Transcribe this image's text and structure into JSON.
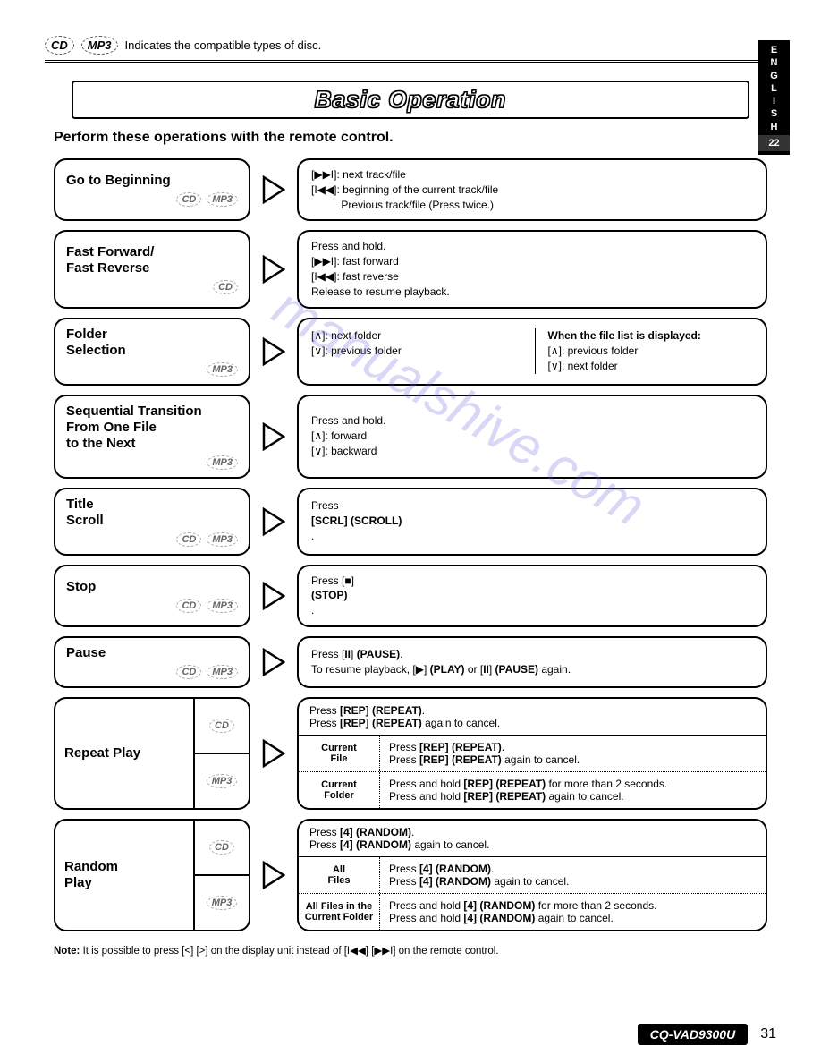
{
  "header": {
    "icons": [
      "CD",
      "MP3"
    ],
    "text": "Indicates the compatible types of disc."
  },
  "lang_tab": {
    "letters": [
      "E",
      "N",
      "G",
      "L",
      "I",
      "S",
      "H"
    ],
    "num": "22"
  },
  "title": "Basic Operation",
  "subtitle": "Perform these operations with the remote control.",
  "rows": [
    {
      "title": "Go to Beginning",
      "badges": [
        "CD",
        "MP3"
      ],
      "desc_lines": [
        "[▶▶I]: next track/file",
        "[I◀◀]: beginning of the current track/file",
        "          Previous track/file (Press twice.)"
      ]
    },
    {
      "title": "Fast Forward/\nFast Reverse",
      "badges": [
        "CD"
      ],
      "desc_lines": [
        "Press and hold.",
        "[▶▶I]: fast forward",
        "[I◀◀]: fast reverse",
        "Release to resume playback."
      ]
    },
    {
      "title": "Folder\nSelection",
      "badges": [
        "MP3"
      ],
      "split": true,
      "col1": [
        "[∧]: next folder",
        "[∨]: previous folder"
      ],
      "col2_head": "When the file list is displayed:",
      "col2": [
        "[∧]: previous folder",
        "[∨]: next folder"
      ]
    },
    {
      "title": "Sequential Transition\nFrom One File\nto the Next",
      "badges": [
        "MP3"
      ],
      "desc_lines": [
        "Press and hold.",
        "[∧]: forward",
        "[∨]: backward"
      ]
    },
    {
      "title": "Title\nScroll",
      "badges": [
        "CD",
        "MP3"
      ],
      "desc_html": "Press <b>[SCRL] (SCROLL)</b>."
    },
    {
      "title": "Stop",
      "badges": [
        "CD",
        "MP3"
      ],
      "desc_html": "Press [■] <b>(STOP)</b>."
    },
    {
      "title": "Pause",
      "badges": [
        "CD",
        "MP3"
      ],
      "desc_lines_html": [
        "Press [<b>II</b>] <b>(PAUSE)</b>.",
        "To resume playback, [▶] <b>(PLAY)</b> or [<b>II</b>] <b>(PAUSE)</b> again."
      ]
    }
  ],
  "complex": [
    {
      "title": "Repeat Play",
      "top_badge": "CD",
      "bottom_badge": "MP3",
      "top_lines": [
        "Press <b>[REP] (REPEAT)</b>.",
        "Press <b>[REP] (REPEAT)</b> again to cancel."
      ],
      "subrows": [
        {
          "label": "Current\nFile",
          "lines": [
            "Press <b>[REP] (REPEAT)</b>.",
            "Press <b>[REP] (REPEAT)</b> again to cancel."
          ]
        },
        {
          "label": "Current\nFolder",
          "lines": [
            "Press and hold <b>[REP] (REPEAT)</b> for more than 2 seconds.",
            "Press and hold <b>[REP] (REPEAT)</b> again to cancel."
          ]
        }
      ]
    },
    {
      "title": "Random\nPlay",
      "top_badge": "CD",
      "bottom_badge": "MP3",
      "top_lines": [
        "Press <b>[4] (RANDOM)</b>.",
        "Press <b>[4] (RANDOM)</b> again to cancel."
      ],
      "subrows": [
        {
          "label": "All\nFiles",
          "lines": [
            "Press <b>[4] (RANDOM)</b>.",
            "Press <b>[4] (RANDOM)</b> again to cancel."
          ]
        },
        {
          "label": "All Files in the\nCurrent Folder",
          "lines": [
            "Press and hold <b>[4] (RANDOM)</b> for more than 2 seconds.",
            "Press and hold <b>[4] (RANDOM)</b> again to cancel."
          ]
        }
      ]
    }
  ],
  "note": "<b>Note:</b> It is possible to press [<] [>] on the display unit instead of [I◀◀] [▶▶I] on the remote control.",
  "footer": {
    "model": "CQ-VAD9300U",
    "page": "31"
  },
  "watermark": "manualshive.com"
}
